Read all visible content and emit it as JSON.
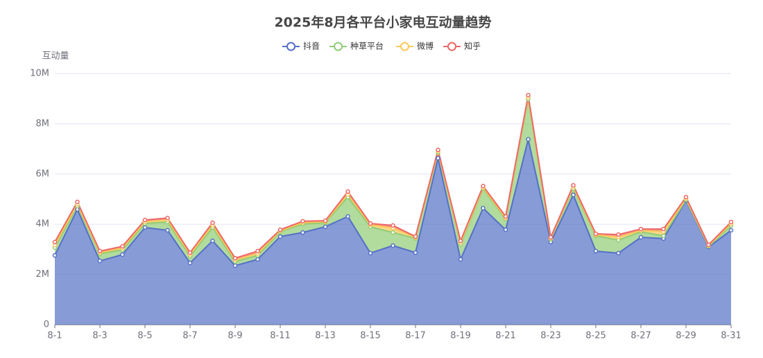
{
  "chart_data": {
    "type": "stacked-area",
    "title": "2025年8月各平台小家电互动量趋势",
    "y_axis_label": "互动量",
    "categories": [
      "8-1",
      null,
      "8-3",
      null,
      "8-5",
      null,
      "8-7",
      null,
      "8-9",
      null,
      "8-11",
      null,
      "8-13",
      null,
      "8-15",
      null,
      "8-17",
      null,
      "8-19",
      null,
      "8-21",
      null,
      "8-23",
      null,
      "8-25",
      null,
      "8-27",
      null,
      "8-29",
      null,
      "8-31"
    ],
    "series": [
      {
        "name": "抖音",
        "color": "#5470c6",
        "values": [
          2.76,
          4.59,
          2.54,
          2.79,
          3.87,
          3.76,
          2.46,
          3.34,
          2.35,
          2.6,
          3.51,
          3.67,
          3.9,
          4.31,
          2.85,
          3.15,
          2.87,
          6.63,
          2.6,
          4.64,
          3.78,
          7.38,
          3.29,
          5.17,
          2.93,
          2.85,
          3.48,
          3.43,
          4.94,
          3.09,
          3.76
        ]
      },
      {
        "name": "种草平台",
        "color": "#91cc75",
        "values": [
          0.31,
          0.13,
          0.28,
          0.19,
          0.16,
          0.33,
          0.27,
          0.53,
          0.16,
          0.16,
          0.19,
          0.34,
          0.16,
          0.77,
          1.05,
          0.52,
          0.56,
          0.22,
          0.6,
          0.77,
          0.42,
          1.6,
          0.11,
          0.24,
          0.61,
          0.52,
          0.22,
          0.11,
          0.03,
          0.03,
          0.19
        ]
      },
      {
        "name": "微博",
        "color": "#fac858",
        "values": [
          0.1,
          0.08,
          0.05,
          0.07,
          0.07,
          0.08,
          0.07,
          0.09,
          0.07,
          0.08,
          0.04,
          0.05,
          0.04,
          0.1,
          0.08,
          0.18,
          0.04,
          0.05,
          0.07,
          0.05,
          0.05,
          0.08,
          0.04,
          0.07,
          0.04,
          0.12,
          0.05,
          0.17,
          0.05,
          0.03,
          0.07
        ]
      },
      {
        "name": "知乎",
        "color": "#ee6666",
        "values": [
          0.12,
          0.09,
          0.06,
          0.07,
          0.07,
          0.08,
          0.07,
          0.1,
          0.07,
          0.09,
          0.04,
          0.06,
          0.04,
          0.12,
          0.05,
          0.1,
          0.04,
          0.06,
          0.07,
          0.06,
          0.06,
          0.08,
          0.04,
          0.07,
          0.04,
          0.1,
          0.06,
          0.1,
          0.06,
          0.03,
          0.07
        ]
      }
    ],
    "ylim": [
      0,
      10
    ],
    "yticks": [
      0,
      {
        "value": 2,
        "label": "2M"
      },
      {
        "value": 4,
        "label": "4M"
      },
      {
        "value": 6,
        "label": "6M"
      },
      {
        "value": 8,
        "label": "8M"
      },
      {
        "value": 10,
        "label": "10M"
      }
    ],
    "grid": true
  }
}
